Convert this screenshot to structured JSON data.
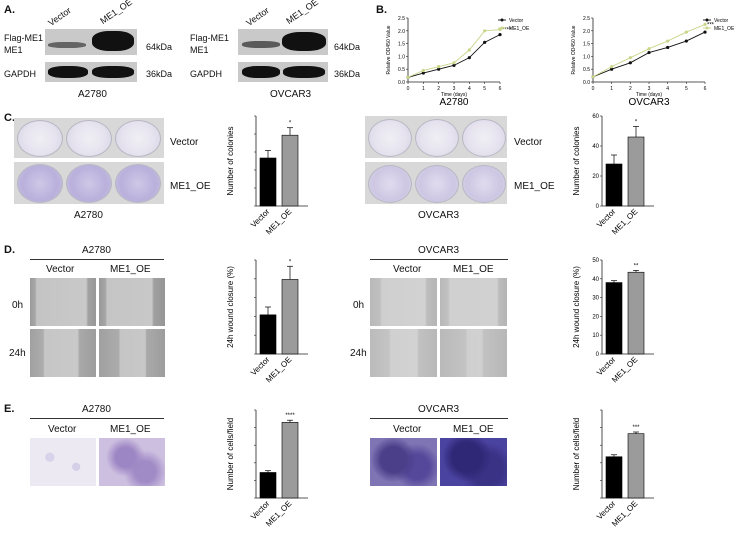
{
  "panels": {
    "A": "A.",
    "B": "B.",
    "C": "C.",
    "D": "D.",
    "E": "E."
  },
  "panel_a": {
    "left": {
      "cols": [
        "Vector",
        "ME1_OE"
      ],
      "rows": [
        "Flag-ME1",
        "ME1",
        "GAPDH"
      ],
      "sizes": [
        "64kDa",
        "36kDa"
      ],
      "cell": "A2780"
    },
    "right": {
      "cols": [
        "Vector",
        "ME1_OE"
      ],
      "rows": [
        "Flag-ME1",
        "ME1",
        "GAPDH"
      ],
      "sizes": [
        "64kDa",
        "36kDa"
      ],
      "cell": "OVCAR3"
    }
  },
  "panel_c": {
    "rows": [
      "Vector",
      "ME1_OE"
    ],
    "cells": [
      "A2780",
      "OVCAR3"
    ]
  },
  "panel_d": {
    "cells": [
      "A2780",
      "OVCAR3"
    ],
    "cols": [
      "Vector",
      "ME1_OE"
    ],
    "rows": [
      "0h",
      "24h"
    ]
  },
  "panel_e": {
    "cells": [
      "A2780",
      "OVCAR3"
    ],
    "cols": [
      "Vector",
      "ME1_OE"
    ]
  },
  "chart_data": [
    {
      "id": "B-A2780",
      "type": "line",
      "title": "A2780",
      "xlabel": "Time (days)",
      "ylabel": "Relative OD450 Value",
      "x": [
        0,
        1,
        2,
        3,
        4,
        5,
        6
      ],
      "xlim": [
        0,
        6
      ],
      "ylim": [
        0.0,
        2.5
      ],
      "yticks": [
        "0.0",
        "0.5",
        "1.0",
        "1.5",
        "2.0",
        "2.5"
      ],
      "significance": "****",
      "legend_position": "top-right",
      "series": [
        {
          "name": "Vector",
          "color": "#111111",
          "values": [
            0.18,
            0.35,
            0.5,
            0.65,
            0.95,
            1.55,
            1.85
          ]
        },
        {
          "name": "ME1_OE",
          "color": "#c9d68a",
          "values": [
            0.18,
            0.45,
            0.6,
            0.75,
            1.25,
            2.0,
            2.05
          ]
        }
      ]
    },
    {
      "id": "B-OVCAR3",
      "type": "line",
      "title": "OVCAR3",
      "xlabel": "Time (days)",
      "ylabel": "Relative OD450 Value",
      "x": [
        0,
        1,
        2,
        3,
        4,
        5,
        6
      ],
      "xlim": [
        0,
        6
      ],
      "ylim": [
        0.0,
        2.5
      ],
      "yticks": [
        "0.0",
        "0.5",
        "1.0",
        "1.5",
        "2.0",
        "2.5"
      ],
      "significance": "***",
      "legend_position": "top-right",
      "series": [
        {
          "name": "Vector",
          "color": "#111111",
          "values": [
            0.2,
            0.5,
            0.75,
            1.15,
            1.35,
            1.6,
            1.95
          ]
        },
        {
          "name": "ME1_OE",
          "color": "#c9d68a",
          "values": [
            0.2,
            0.6,
            0.95,
            1.3,
            1.6,
            1.95,
            2.25
          ]
        }
      ]
    },
    {
      "id": "C-A2780",
      "type": "bar",
      "title": "",
      "xlabel": "",
      "ylabel": "Number of colonies",
      "categories": [
        "Vector",
        "ME1_OE"
      ],
      "values": [
        160,
        236
      ],
      "errors": [
        25,
        25
      ],
      "colors": [
        "#000000",
        "#9b9b9b"
      ],
      "ylim": [
        0,
        300
      ],
      "yticks": [],
      "significance": "*"
    },
    {
      "id": "C-OVCAR3",
      "type": "bar",
      "title": "",
      "xlabel": "",
      "ylabel": "Number of colonies",
      "categories": [
        "Vector",
        "ME1_OE"
      ],
      "values": [
        28,
        46
      ],
      "errors": [
        6,
        7
      ],
      "colors": [
        "#000000",
        "#9b9b9b"
      ],
      "ylim": [
        0,
        60
      ],
      "yticks": [
        "0",
        "20",
        "40",
        "60"
      ],
      "significance": "*"
    },
    {
      "id": "D-A2780",
      "type": "bar",
      "title": "",
      "xlabel": "",
      "ylabel": "24h wound closure (%)",
      "categories": [
        "Vector",
        "ME1_OE"
      ],
      "values": [
        12.5,
        23.8
      ],
      "errors": [
        2.5,
        4.2
      ],
      "colors": [
        "#000000",
        "#9b9b9b"
      ],
      "ylim": [
        0,
        30
      ],
      "yticks": [],
      "significance": "*"
    },
    {
      "id": "D-OVCAR3",
      "type": "bar",
      "title": "",
      "xlabel": "",
      "ylabel": "24h wound closure (%)",
      "categories": [
        "Vector",
        "ME1_OE"
      ],
      "values": [
        38,
        43.5
      ],
      "errors": [
        1.0,
        1.0
      ],
      "colors": [
        "#000000",
        "#9b9b9b"
      ],
      "ylim": [
        0,
        50
      ],
      "yticks": [
        "0",
        "10",
        "20",
        "30",
        "40",
        "50"
      ],
      "significance": "**"
    },
    {
      "id": "E-A2780",
      "type": "bar",
      "title": "",
      "xlabel": "",
      "ylabel": "Number of cells/field",
      "categories": [
        "Vector",
        "ME1_OE"
      ],
      "values": [
        145,
        430
      ],
      "errors": [
        10,
        12
      ],
      "colors": [
        "#000000",
        "#9b9b9b"
      ],
      "ylim": [
        0,
        500
      ],
      "yticks": [],
      "significance": "****"
    },
    {
      "id": "E-OVCAR3",
      "type": "bar",
      "title": "",
      "xlabel": "",
      "ylabel": "Number of cells/field",
      "categories": [
        "Vector",
        "ME1_OE"
      ],
      "values": [
        375,
        585
      ],
      "errors": [
        18,
        15
      ],
      "colors": [
        "#000000",
        "#9b9b9b"
      ],
      "ylim": [
        0,
        800
      ],
      "yticks": [],
      "significance": "***"
    }
  ]
}
